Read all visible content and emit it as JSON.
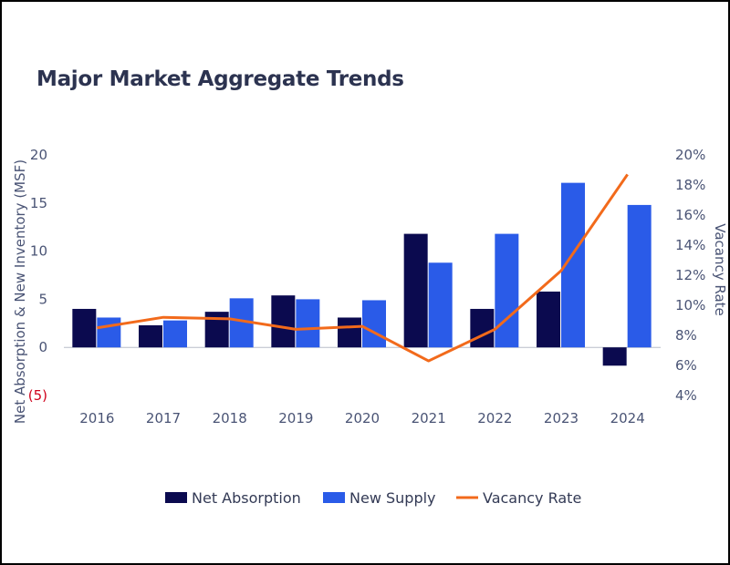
{
  "chart_data": {
    "type": "bar",
    "title": "Major Market Aggregate Trends",
    "categories": [
      "2016",
      "2017",
      "2018",
      "2019",
      "2020",
      "2021",
      "2022",
      "2023",
      "2024"
    ],
    "series": [
      {
        "name": "Net Absorption",
        "type": "bar",
        "axis": "left",
        "color": "#0b0a4f",
        "values": [
          4.0,
          2.3,
          3.7,
          5.4,
          3.1,
          11.8,
          4.0,
          5.8,
          -1.9
        ]
      },
      {
        "name": "New Supply",
        "type": "bar",
        "axis": "left",
        "color": "#2a5be8",
        "values": [
          3.1,
          2.8,
          5.1,
          5.0,
          4.9,
          8.8,
          11.8,
          17.1,
          14.8
        ]
      },
      {
        "name": "Vacancy Rate",
        "type": "line",
        "axis": "right",
        "color": "#f26a1b",
        "values": [
          8.5,
          9.2,
          9.1,
          8.4,
          8.6,
          6.3,
          8.4,
          12.3,
          18.7
        ]
      }
    ],
    "left_axis": {
      "label": "Net Absorption & New Inventory (MSF)",
      "ylim": [
        -5,
        20
      ],
      "ticks": [
        20,
        15,
        10,
        5,
        0,
        -5
      ],
      "tick_labels": [
        "20",
        "15",
        "10",
        "5",
        "0",
        "(5)"
      ]
    },
    "right_axis": {
      "label": "Vacancy Rate",
      "ylim": [
        4,
        20
      ],
      "ticks": [
        20,
        18,
        16,
        14,
        12,
        10,
        8,
        6,
        4
      ],
      "tick_labels": [
        "20%",
        "18%",
        "16%",
        "14%",
        "12%",
        "10%",
        "8%",
        "6%",
        "4%"
      ]
    },
    "grid": false,
    "legend": "bottom-center"
  }
}
